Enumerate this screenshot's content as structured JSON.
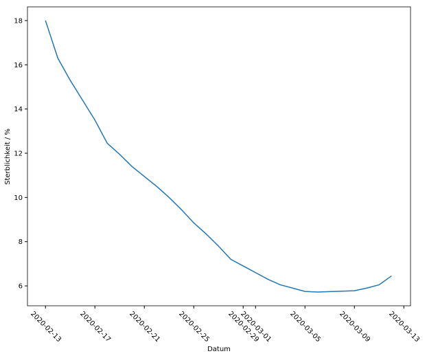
{
  "chart_data": {
    "type": "line",
    "x_label": "Datum",
    "y_label": "Sterblichkeit / %",
    "x": [
      "2020-02-13",
      "2020-02-14",
      "2020-02-15",
      "2020-02-16",
      "2020-02-17",
      "2020-02-18",
      "2020-02-19",
      "2020-02-20",
      "2020-02-21",
      "2020-02-22",
      "2020-02-23",
      "2020-02-24",
      "2020-02-25",
      "2020-02-26",
      "2020-02-27",
      "2020-02-28",
      "2020-02-29",
      "2020-03-01",
      "2020-03-02",
      "2020-03-03",
      "2020-03-04",
      "2020-03-05",
      "2020-03-06",
      "2020-03-07",
      "2020-03-08",
      "2020-03-09",
      "2020-03-10",
      "2020-03-11",
      "2020-03-12"
    ],
    "series": [
      {
        "color": "#1f77b4",
        "values": [
          18.0,
          16.3,
          15.3,
          14.4,
          13.5,
          12.45,
          11.95,
          11.4,
          10.95,
          10.5,
          10.0,
          9.45,
          8.85,
          8.35,
          7.8,
          7.2,
          6.9,
          6.6,
          6.3,
          6.05,
          5.9,
          5.75,
          5.72,
          5.74,
          5.76,
          5.78,
          5.9,
          6.05,
          6.45
        ]
      }
    ],
    "xlim": [
      "2020-02-11T13:00",
      "2020-03-13T13:00"
    ],
    "xticks": [
      "2020-02-13",
      "2020-02-17",
      "2020-02-21",
      "2020-02-25",
      "2020-02-29",
      "2020-03-01",
      "2020-03-05",
      "2020-03-09",
      "2020-03-13"
    ],
    "ylim": [
      5.1,
      18.62
    ],
    "yticks": [
      6,
      8,
      10,
      12,
      14,
      16,
      18
    ]
  }
}
